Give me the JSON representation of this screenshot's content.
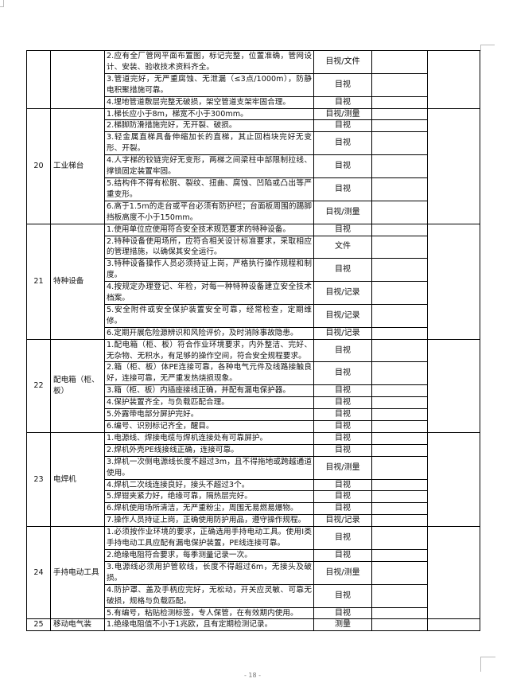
{
  "table": {
    "groups": [
      {
        "num": "",
        "name": "",
        "items": [
          {
            "text": "2.应有全厂管网平面布置图，标记完整，位置准确，管网设计、安装、验收技术资料齐全。",
            "method": "目视/文件"
          },
          {
            "text": "3.管道完好，无严重腐蚀、无泄漏（≤3点/1000m），防静电积聚措施可靠。",
            "method": "目视"
          },
          {
            "text": "4.埋地管道敷层完整无破损，架空管道支架牢固合理。",
            "method": "目视"
          }
        ]
      },
      {
        "num": "20",
        "name": "工业梯台",
        "items": [
          {
            "text": "1.梯长应小于8m，梯宽不小于300mm。",
            "method": "目视/测量"
          },
          {
            "text": "2.梯脚防滑措施完好，无开裂、破损。",
            "method": "目视"
          },
          {
            "text": "3.轻金属直梯具备伸缩加长的直梯，其止回档块完好无变形、开裂。",
            "method": "目视"
          },
          {
            "text": "4.人字梯的铰链完好无变形，两梯之间梁柱中部限制拉线、撑锁固定装置牢固。",
            "method": "目视"
          },
          {
            "text": "5.结构件不得有松脱、裂纹、扭曲、腐蚀、凹陷或凸出等严重变形。",
            "method": "目视"
          },
          {
            "text": "6.高于1.5m的走台或平台必须有防护栏；台面板周围的踢脚挡板高度不小于150mm。",
            "method": "目视/测量"
          }
        ]
      },
      {
        "num": "21",
        "name": "特种设备",
        "items": [
          {
            "text": "1.使用单位应使用符合安全技术规范要求的特种设备。",
            "method": "目视"
          },
          {
            "text": "2.特种设备使用场所，应符合相关设计标准要求，采取相应的管理措施，以确保其安全运行。",
            "method": "文件"
          },
          {
            "text": "3.特种设备操作人员必须持证上岗，严格执行操作规程和制度。",
            "method": "目视"
          },
          {
            "text": "4.按规定办理登记、年检，对每一种特种设备建立安全技术档案。",
            "method": "目视/记录"
          },
          {
            "text": "5.安全附件或安全保护装置安全可靠，经常检查，定期维修。",
            "method": "目视/记录"
          },
          {
            "text": "6.定期开展危险源辨识和风险评价，及时消除事故隐患。",
            "method": "目视/记录"
          }
        ]
      },
      {
        "num": "22",
        "name": "配电箱（柜、板）",
        "items": [
          {
            "text": "1.配电箱（柜、板）符合作业环境要求，内外整洁、完好、无杂物、无积水，有足够的操作空间，符合安全规程要求。",
            "method": "目视"
          },
          {
            "text": "2.箱（柜、板）体PE连接可靠，各种电气元件及线路接触良好，连接可靠，无严重发热烧损现象。",
            "method": "目视"
          },
          {
            "text": "3.箱（柜、板）内插座接线正确，并配有漏电保护器。",
            "method": "目视"
          },
          {
            "text": "4.保护装置齐全，与负载匹配合理。",
            "method": "目视"
          },
          {
            "text": "5.外露带电部分屏护完好。",
            "method": "目视"
          },
          {
            "text": "6.编号、识别标记齐全，醒目。",
            "method": "目视"
          }
        ]
      },
      {
        "num": "23",
        "name": "电焊机",
        "items": [
          {
            "text": "1.电源线、焊接电缆与焊机连接处有可靠屏护。",
            "method": "目视"
          },
          {
            "text": "2.焊机外壳PE线接线正确，连接可靠。",
            "method": "目视"
          },
          {
            "text": "3.焊机一次侧电源线长度不超过3m，且不得拖地或跨越通道使用。",
            "method": "目视/测量"
          },
          {
            "text": "4.焊机二次线连接良好，接头不超过3个。",
            "method": "目视"
          },
          {
            "text": "5.焊钳夹紧力好，绝缘可靠，隔热层完好。",
            "method": "目视"
          },
          {
            "text": "6.焊机使用场所清洁，无严重粉尘，周围无易燃易爆物。",
            "method": "目视"
          },
          {
            "text": "7.操作人员持证上岗，正确使用防护用品，遵守操作规程。",
            "method": "目视/记录"
          }
        ]
      },
      {
        "num": "24",
        "name": "手持电动工具",
        "items": [
          {
            "text": "1.必须按作业环境的要求，正确选用手持电动工具。使用Ⅰ类手持电动工具应配有漏电保护装置，PE线连接可靠。",
            "method": "目视"
          },
          {
            "text": "2.绝缘电阻符合要求，每季测量记录一次。",
            "method": "目视"
          },
          {
            "text": "3.电源线必须用护管软线，长度不得超过6m，无接头及破损。",
            "method": "目视/测量"
          },
          {
            "text": "4.防护罩、盖及手柄应完好，无松动，开关应灵敏、可靠无破损，规格与负载匹配。",
            "method": "目视"
          },
          {
            "text": "5.有编号，粘贴检测标签，专人保管，在有效期内使用。",
            "method": "目视"
          }
        ]
      },
      {
        "num": "25",
        "name": "移动电气装",
        "items": [
          {
            "text": "1.绝缘电阻值不小于1兆欧，且有定期检测记录。",
            "method": "测量"
          }
        ]
      }
    ]
  },
  "footer": {
    "page_number": "- 18 -"
  }
}
